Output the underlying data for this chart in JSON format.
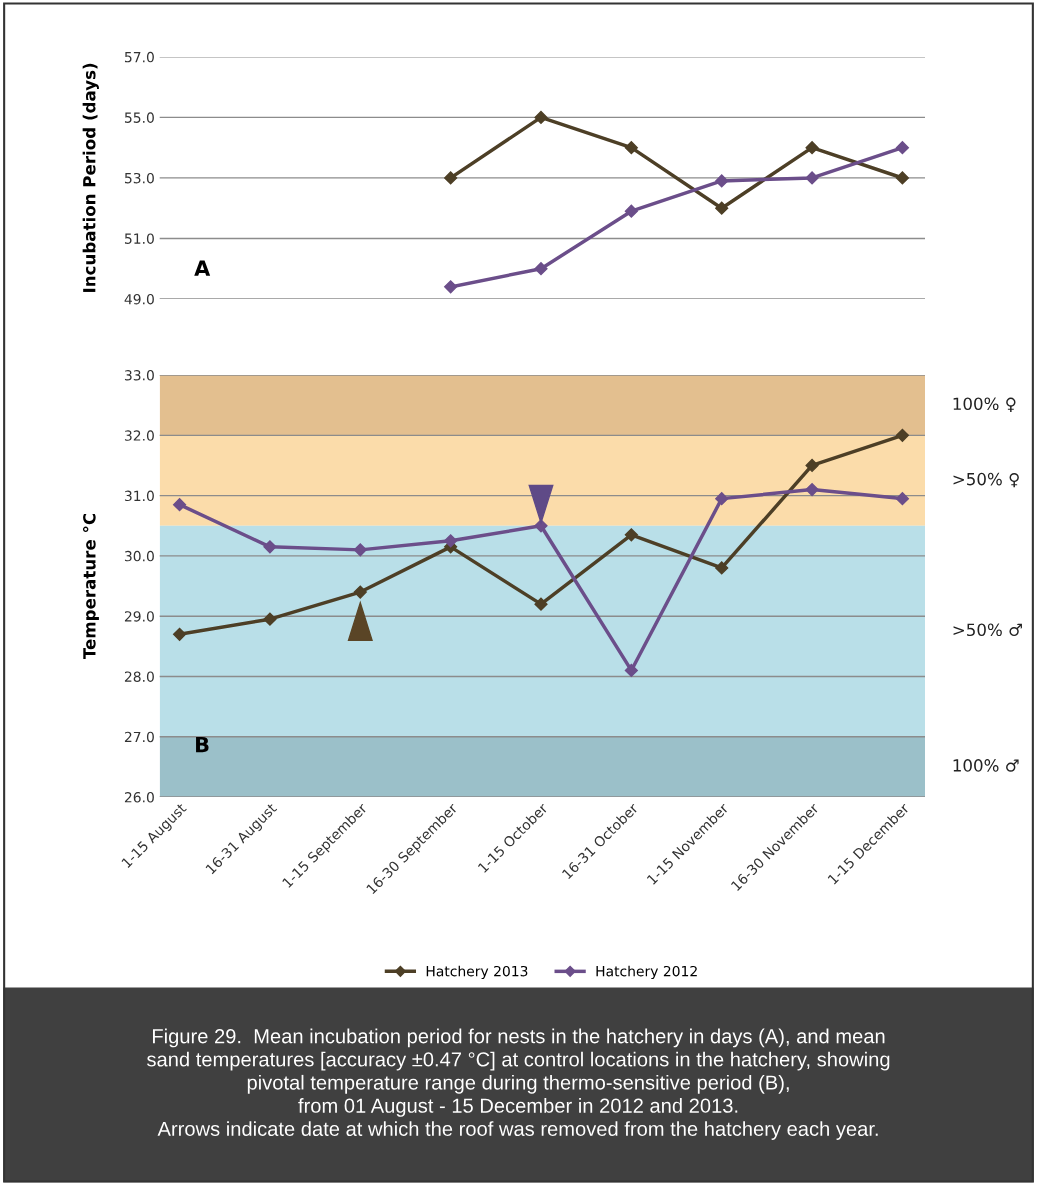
{
  "chart_data": [
    {
      "type": "line",
      "ylabel": "Incubation Period (days)",
      "categories": [
        null,
        null,
        null,
        null,
        null,
        null,
        null,
        null,
        null
      ],
      "series": [
        {
          "color": "#4d3f26",
          "values": [
            null,
            null,
            null,
            53,
            55,
            54,
            52,
            54,
            53
          ]
        },
        {
          "color": "#6b4e8a",
          "values": [
            null,
            null,
            null,
            49.4,
            50.0,
            51.9,
            52.9,
            53.0,
            54.0
          ]
        }
      ],
      "ylim": [
        49,
        57
      ],
      "yticks": [
        {
          "value": 49,
          "label": "49.0"
        },
        {
          "value": 51,
          "label": "51.0"
        },
        {
          "value": 53,
          "label": "53.0"
        },
        {
          "value": 55,
          "label": "55.0"
        },
        {
          "value": 57,
          "label": "57.0"
        }
      ],
      "grid": "y",
      "marker": "diamond",
      "line_style": "solid",
      "tick_labels": "y",
      "legend": false,
      "annotations": [
        "A"
      ]
    },
    {
      "type": "line",
      "ylabel": "Temperature °C",
      "categories": [
        "1-15 August",
        "16-31 August",
        "1-15 September",
        "16-30 September",
        "1-15 October",
        "16-31 October",
        "1-15 November",
        "16-30 November",
        "1-15 December"
      ],
      "series": [
        {
          "name": "Hatchery 2013",
          "color": "#4d3f26",
          "values": [
            28.7,
            28.95,
            29.4,
            30.15,
            29.2,
            30.35,
            29.8,
            31.5,
            32.0
          ]
        },
        {
          "name": "Hatchery 2012",
          "color": "#6b4e8a",
          "values": [
            30.85,
            30.15,
            30.1,
            30.25,
            30.5,
            28.1,
            30.95,
            31.1,
            30.95
          ]
        }
      ],
      "ylim": [
        26,
        33
      ],
      "yticks": [
        {
          "value": 26,
          "label": "26.0"
        },
        {
          "value": 27,
          "label": "27.0"
        },
        {
          "value": 28,
          "label": "28.0"
        },
        {
          "value": 29,
          "label": "29.0"
        },
        {
          "value": 30,
          "label": "30.0"
        },
        {
          "value": 31,
          "label": "31.0"
        },
        {
          "value": 32,
          "label": "32.0"
        },
        {
          "value": 33,
          "label": "33.0"
        }
      ],
      "bands": [
        {
          "axis": "y",
          "from": 32,
          "to": 33,
          "label": "100% ♀",
          "color": "#e3bf8f"
        },
        {
          "axis": "y",
          "from": 30.5,
          "to": 32,
          "label": ">50% ♀",
          "color": "#fbdcaa"
        },
        {
          "axis": "y",
          "from": 27,
          "to": 30.5,
          "label": ">50% ♂",
          "color": "#b9dfe8"
        },
        {
          "axis": "y",
          "from": 26,
          "to": 27,
          "label": "100% ♂",
          "color": "#9bc0c9"
        }
      ],
      "grid": "y",
      "marker": "diamond",
      "line_style": "solid",
      "legend": "bottom",
      "annotations": [
        "B",
        "Figure 29.  Mean incubation period for nests in the hatchery in days (A), and mean\nsand temperatures [accuracy ±0.47 °C] at control locations in the hatchery, showing\npivotal temperature range during thermo-sensitive period (B),\nfrom 01 August - 15 December in 2012 and 2013.\nArrows indicate date at which the roof was removed from the hatchery each year."
      ]
    }
  ]
}
